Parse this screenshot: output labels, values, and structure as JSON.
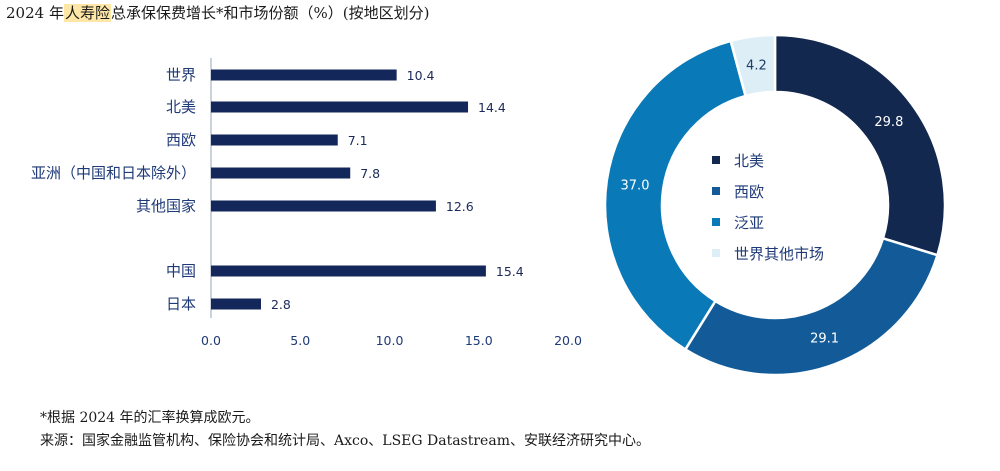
{
  "title": {
    "year": "2024",
    "pre": "年",
    "highlight": "人寿险",
    "post": "总承保保费增长*和市场份额（%）(按地区划分)"
  },
  "footnote": "*根据 2024 年的汇率换算成欧元。",
  "source": "来源：国家金融监管机构、保险协会和统计局、Axco、LSEG Datastream、安联经济研究中心。",
  "chart_data": [
    {
      "type": "bar",
      "orientation": "horizontal",
      "categories": [
        "世界",
        "北美",
        "西欧",
        "亚洲（中国和日本除外）",
        "其他国家",
        "中国",
        "日本"
      ],
      "values": [
        10.4,
        14.4,
        7.1,
        7.8,
        12.6,
        15.4,
        2.8
      ],
      "value_labels": [
        "10.4",
        "14.4",
        "7.1",
        "7.8",
        "12.6",
        "15.4",
        "2.8"
      ],
      "xlim": [
        0,
        20
      ],
      "xticks": [
        "0.0",
        "5.0",
        "10.0",
        "15.0",
        "20.0"
      ],
      "grid": false,
      "color": "#14275a"
    },
    {
      "type": "pie",
      "style": "donut",
      "slices": [
        {
          "label": "北美",
          "value": 29.8,
          "value_label": "29.8",
          "color": "#13284f",
          "text_color": "#ffffff"
        },
        {
          "label": "西欧",
          "value": 29.1,
          "value_label": "29.1",
          "color": "#125b98",
          "text_color": "#ffffff"
        },
        {
          "label": "泛亚",
          "value": 37.0,
          "value_label": "37.0",
          "color": "#0a79b8",
          "text_color": "#ffffff"
        },
        {
          "label": "世界其他市场",
          "value": 4.2,
          "value_label": "4.2",
          "color": "#ddeef6",
          "text_color": "#1b3d6b"
        }
      ],
      "legend": "center"
    }
  ]
}
